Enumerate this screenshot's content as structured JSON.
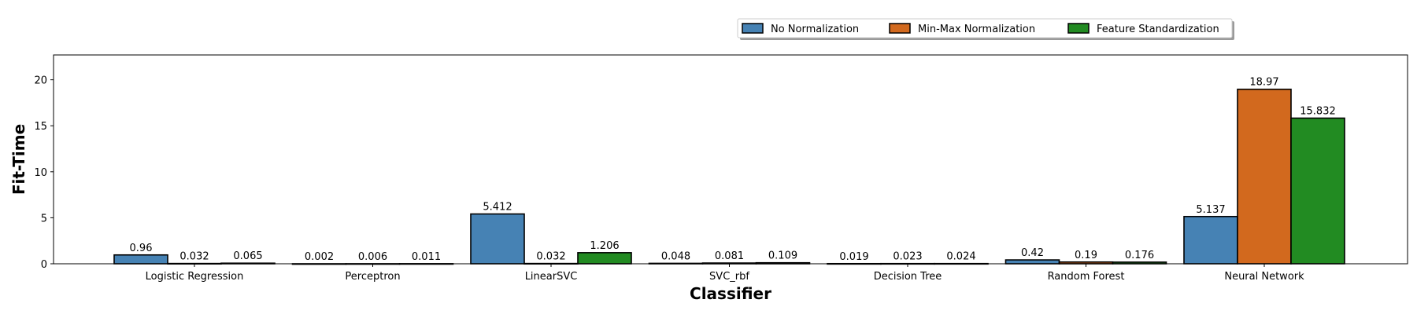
{
  "chart_data": {
    "type": "bar",
    "categories": [
      "Logistic Regression",
      "Perceptron",
      "LinearSVC",
      "SVC_rbf",
      "Decision Tree",
      "Random Forest",
      "Neural Network"
    ],
    "series": [
      {
        "name": "No Normalization",
        "color": "#4682b4",
        "values": [
          0.96,
          0.002,
          5.412,
          0.048,
          0.019,
          0.42,
          5.137
        ],
        "labels": [
          "0.96",
          "0.002",
          "5.412",
          "0.048",
          "0.019",
          "0.42",
          "5.137"
        ]
      },
      {
        "name": "Min-Max Normalization",
        "color": "#d2691e",
        "values": [
          0.032,
          0.006,
          0.032,
          0.081,
          0.023,
          0.19,
          18.97
        ],
        "labels": [
          "0.032",
          "0.006",
          "0.032",
          "0.081",
          "0.023",
          "0.19",
          "18.97"
        ]
      },
      {
        "name": "Feature Standardization",
        "color": "#228b22",
        "values": [
          0.065,
          0.011,
          1.206,
          0.109,
          0.024,
          0.176,
          15.832
        ],
        "labels": [
          "0.065",
          "0.011",
          "1.206",
          "0.109",
          "0.024",
          "0.176",
          "15.832"
        ]
      }
    ],
    "xlabel": "Classifier",
    "ylabel": "Fit-Time",
    "ylim": [
      0,
      22.7
    ],
    "yticks": [
      0,
      5,
      10,
      15,
      20
    ],
    "grid": false,
    "legend_position": "top-right"
  }
}
